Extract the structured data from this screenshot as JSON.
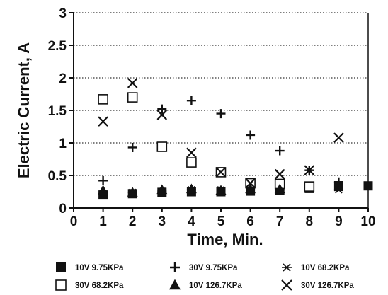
{
  "chart_data": {
    "type": "scatter",
    "xlabel": "Time, Min.",
    "ylabel": "Electric Current, A",
    "xlim": [
      0,
      10
    ],
    "ylim": [
      0,
      3
    ],
    "x_ticks": [
      "0",
      "1",
      "2",
      "3",
      "4",
      "5",
      "6",
      "7",
      "8",
      "9",
      "10"
    ],
    "y_ticks": [
      "0",
      "0.5",
      "1",
      "1.5",
      "2",
      "2.5",
      "3"
    ],
    "grid": "horizontal-dotted",
    "legend_position": "bottom",
    "series": [
      {
        "name": "10V 9.75KPa",
        "marker": "filled-square",
        "points": [
          [
            1,
            0.2
          ],
          [
            2,
            0.22
          ],
          [
            3,
            0.24
          ],
          [
            4,
            0.25
          ],
          [
            5,
            0.25
          ],
          [
            6,
            0.26
          ],
          [
            7,
            0.27
          ],
          [
            8,
            0.3
          ],
          [
            9,
            0.33
          ],
          [
            10,
            0.34
          ]
        ]
      },
      {
        "name": "30V 9.75KPa",
        "marker": "plus",
        "points": [
          [
            1,
            0.42
          ],
          [
            2,
            0.93
          ],
          [
            3,
            1.52
          ],
          [
            4,
            1.65
          ],
          [
            5,
            1.45
          ],
          [
            6,
            1.12
          ],
          [
            7,
            0.88
          ],
          [
            8,
            0.58
          ],
          [
            9,
            0.4
          ]
        ]
      },
      {
        "name": "10V 68.2KPa",
        "marker": "asterisk",
        "points": [
          [
            1,
            0.22
          ],
          [
            2,
            0.24
          ],
          [
            3,
            0.26
          ],
          [
            4,
            0.28
          ],
          [
            5,
            0.28
          ],
          [
            6,
            0.3
          ],
          [
            7,
            0.3
          ],
          [
            8,
            0.31
          ],
          [
            9,
            0.28
          ]
        ]
      },
      {
        "name": "30V 68.2KPa",
        "marker": "open-square",
        "points": [
          [
            1,
            1.67
          ],
          [
            2,
            1.7
          ],
          [
            3,
            0.94
          ],
          [
            4,
            0.7
          ],
          [
            5,
            0.55
          ],
          [
            6,
            0.38
          ],
          [
            7,
            0.37
          ],
          [
            8,
            0.33
          ]
        ]
      },
      {
        "name": "10V 126.7KPa",
        "marker": "filled-triangle",
        "points": [
          [
            1,
            0.27
          ],
          [
            2,
            0.24
          ],
          [
            3,
            0.28
          ],
          [
            4,
            0.29
          ],
          [
            5,
            0.27
          ],
          [
            6,
            0.29
          ],
          [
            7,
            0.29
          ]
        ]
      },
      {
        "name": "30V 126.7KPa",
        "marker": "x",
        "points": [
          [
            1,
            1.33
          ],
          [
            2,
            1.92
          ],
          [
            3,
            1.43
          ],
          [
            4,
            0.85
          ],
          [
            5,
            0.55
          ],
          [
            6,
            0.38
          ],
          [
            7,
            0.52
          ],
          [
            8,
            0.58
          ],
          [
            9,
            1.08
          ]
        ]
      }
    ]
  }
}
